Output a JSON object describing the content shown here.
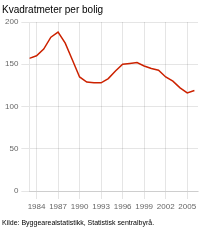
{
  "chart_data": {
    "type": "line",
    "title": "Kvadratmeter per bolig",
    "annotations": [
      "Kilde: Byggearealstatistikk, Statistisk sentralbyrå."
    ],
    "x": [
      1983,
      1984,
      1985,
      1986,
      1987,
      1988,
      1989,
      1990,
      1991,
      1992,
      1993,
      1994,
      1995,
      1996,
      1997,
      1998,
      1999,
      2000,
      2001,
      2002,
      2003,
      2004,
      2005,
      2006
    ],
    "values": [
      157,
      160,
      168,
      182,
      188,
      175,
      155,
      135,
      129,
      128,
      128,
      133,
      142,
      150,
      151,
      152,
      148,
      145,
      143,
      135,
      130,
      122,
      116,
      119
    ],
    "color": "#cc2200",
    "xlim": [
      1983,
      2006.5
    ],
    "xticks": [
      1984,
      1987,
      1990,
      1993,
      1996,
      1999,
      2002,
      2005
    ],
    "ylim": [
      0,
      200
    ],
    "yticks": [
      0,
      50,
      100,
      150,
      200
    ],
    "grid": true
  }
}
